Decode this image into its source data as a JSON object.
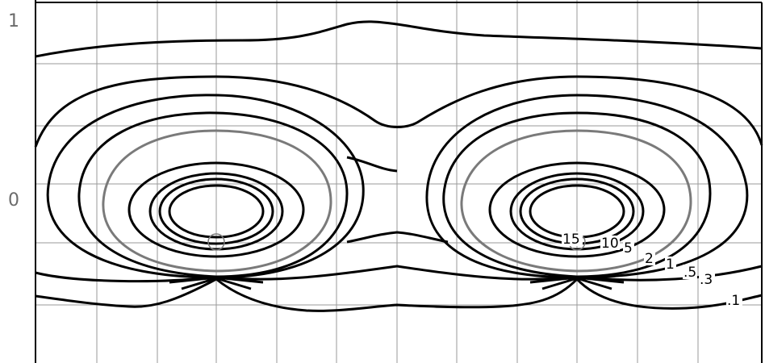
{
  "diagram": {
    "y_tick_labels": [
      "1",
      "0"
    ],
    "contour_labels": [
      "15",
      "10",
      "5",
      "2",
      "1",
      ".5",
      ".3",
      ".1"
    ],
    "colors": {
      "contour": "#000000",
      "highlight_contour": "#7a7a7a",
      "grid": "#9a9a9a",
      "tick_text": "#6b6b6b",
      "background": "#ffffff"
    },
    "highlighted_level": "2",
    "source_marker": "circle-marker"
  }
}
